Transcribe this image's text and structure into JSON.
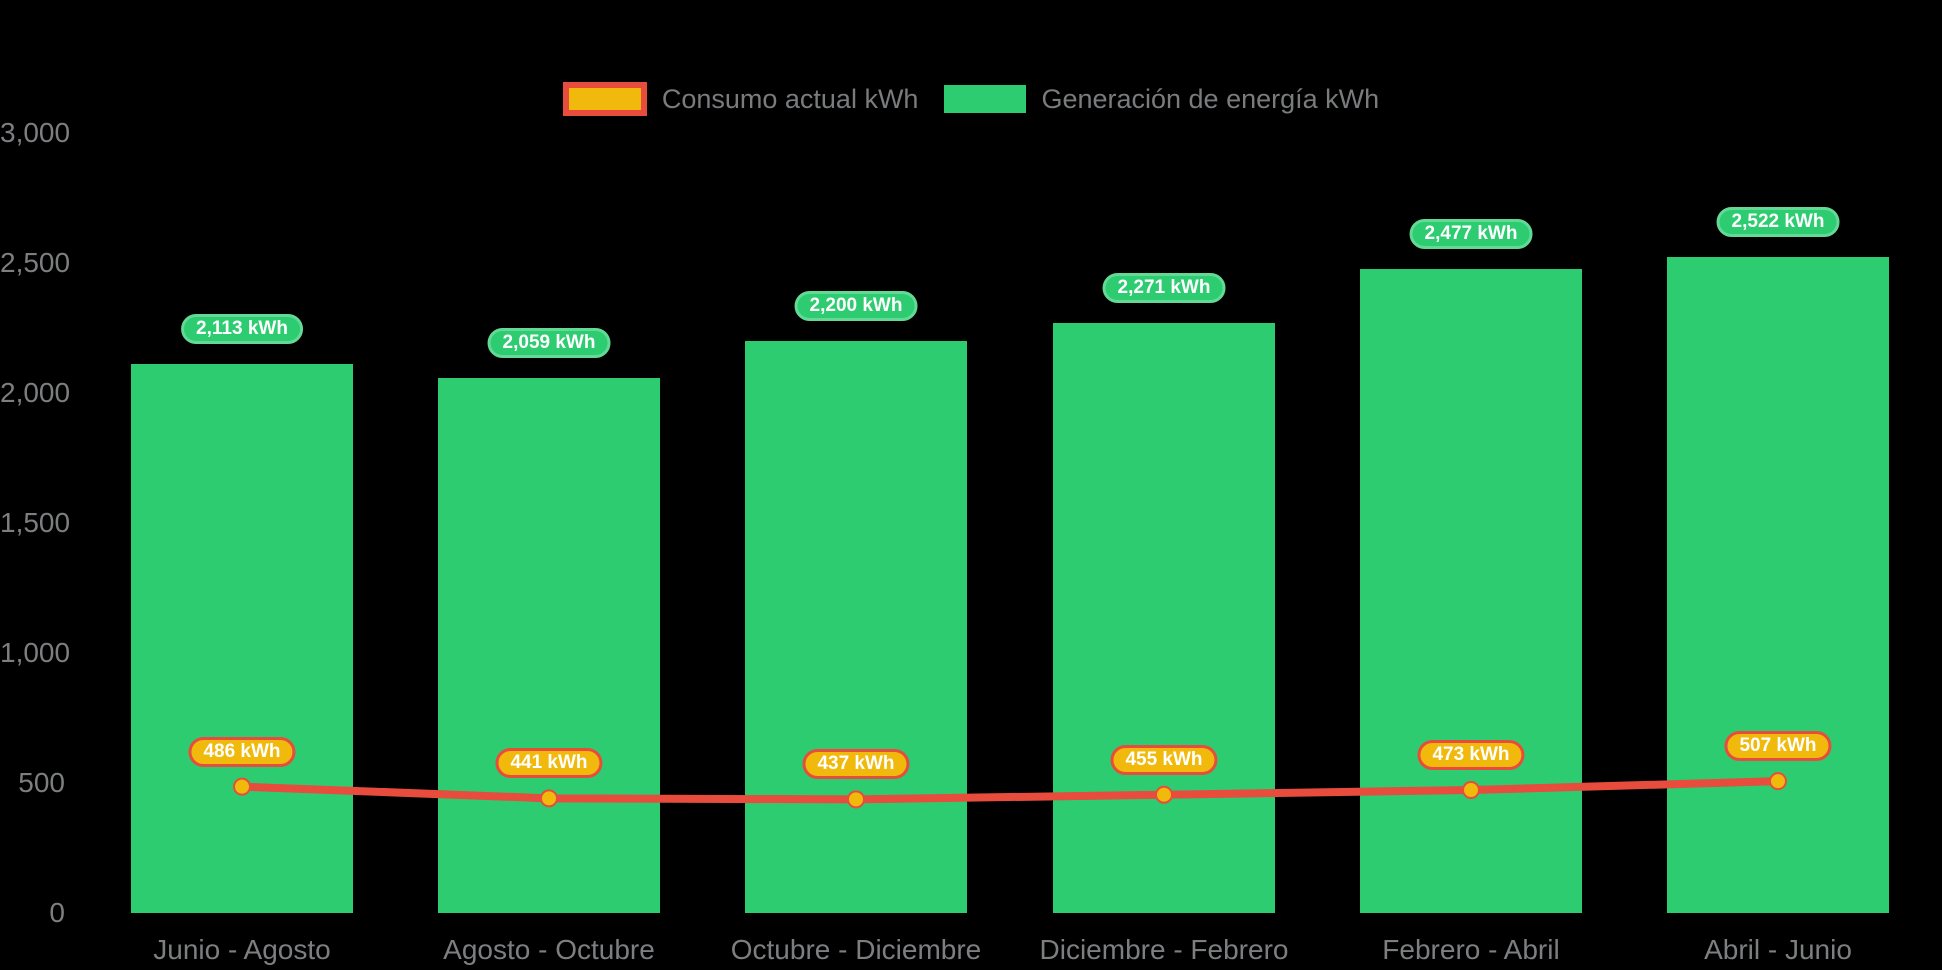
{
  "chart_data": {
    "type": "bar",
    "title": "",
    "categories": [
      "Junio - Agosto",
      "Agosto - Octubre",
      "Octubre - Diciembre",
      "Diciembre - Febrero",
      "Febrero - Abril",
      "Abril - Junio"
    ],
    "series": [
      {
        "name": "Consumo actual kWh",
        "render_as": "line",
        "values": [
          486,
          441,
          437,
          455,
          473,
          507
        ],
        "point_labels": [
          "486 kWh",
          "441 kWh",
          "437 kWh",
          "455 kWh",
          "473 kWh",
          "507 kWh"
        ],
        "line_color": "#e74c3c",
        "marker_color": "#f0b90b"
      },
      {
        "name": "Generación de energía kWh",
        "render_as": "bar",
        "values": [
          2113,
          2059,
          2200,
          2271,
          2477,
          2522
        ],
        "point_labels": [
          "2,113 kWh",
          "2,059 kWh",
          "2,200 kWh",
          "2,271 kWh",
          "2,477 kWh",
          "2,522 kWh"
        ],
        "bar_color": "#2ecc71"
      }
    ],
    "y_axis": {
      "range": [
        0,
        3000
      ],
      "ticks": [
        0,
        500,
        1000,
        1500,
        2000,
        2500,
        3000
      ],
      "tick_labels": [
        "0",
        "500",
        "1,000",
        "1,500",
        "2,000",
        "2,500",
        "3,000"
      ]
    },
    "grid": false,
    "legend_position": "top-center",
    "background_color": "#000000",
    "text_color": "#7d7e80"
  },
  "legend": {
    "consumption_label": "Consumo actual kWh",
    "generation_label": "Generación de energía kWh"
  }
}
